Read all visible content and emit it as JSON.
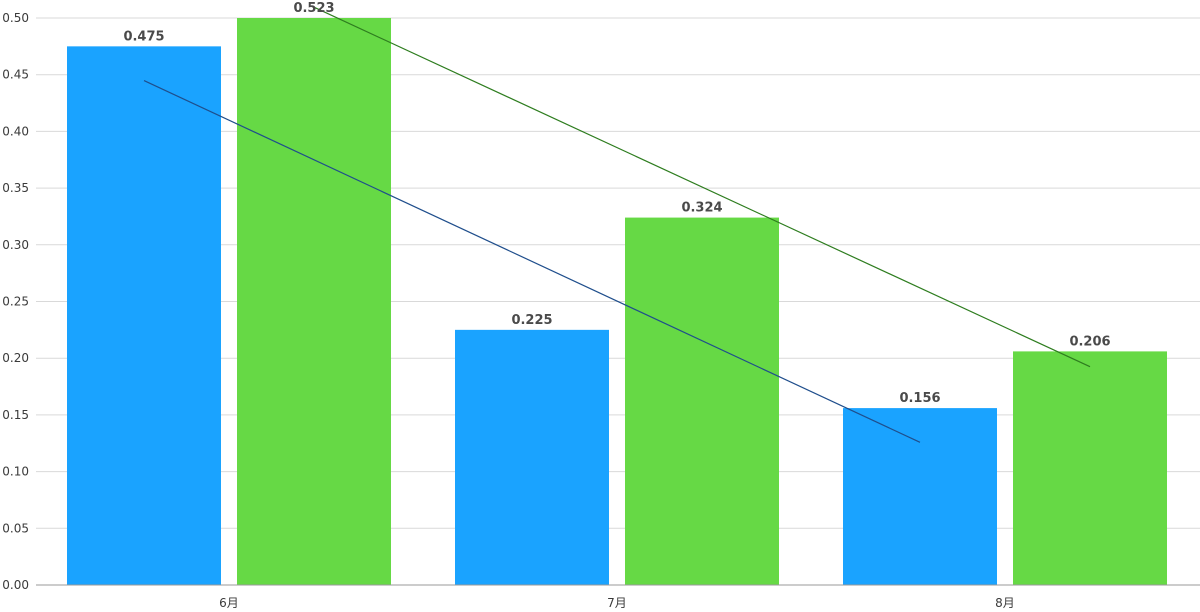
{
  "chart_data": {
    "type": "bar",
    "categories": [
      "6月",
      "7月",
      "8月"
    ],
    "series": [
      {
        "values": [
          0.475,
          0.225,
          0.156
        ],
        "color": "#1aa3ff",
        "labels": [
          "0.475",
          "0.225",
          "0.156"
        ]
      },
      {
        "values": [
          0.523,
          0.324,
          0.206
        ],
        "color": "#66d945",
        "labels": [
          "0.523",
          "0.324",
          "0.206"
        ]
      }
    ],
    "trendlines": [
      {
        "series_index": 0,
        "color": "#1f4e8c"
      },
      {
        "series_index": 1,
        "color": "#2e7d1f"
      }
    ],
    "ylim": [
      0,
      0.5
    ],
    "yticks": [
      0,
      0.05,
      0.1,
      0.15,
      0.2,
      0.25,
      0.3,
      0.35,
      0.4,
      0.45,
      0.5
    ],
    "ytick_labels": [
      "0.00",
      "0.05",
      "0.10",
      "0.15",
      "0.20",
      "0.25",
      "0.30",
      "0.35",
      "0.40",
      "0.45",
      "0.50"
    ],
    "grid": true,
    "title": "",
    "xlabel": "",
    "ylabel": ""
  }
}
